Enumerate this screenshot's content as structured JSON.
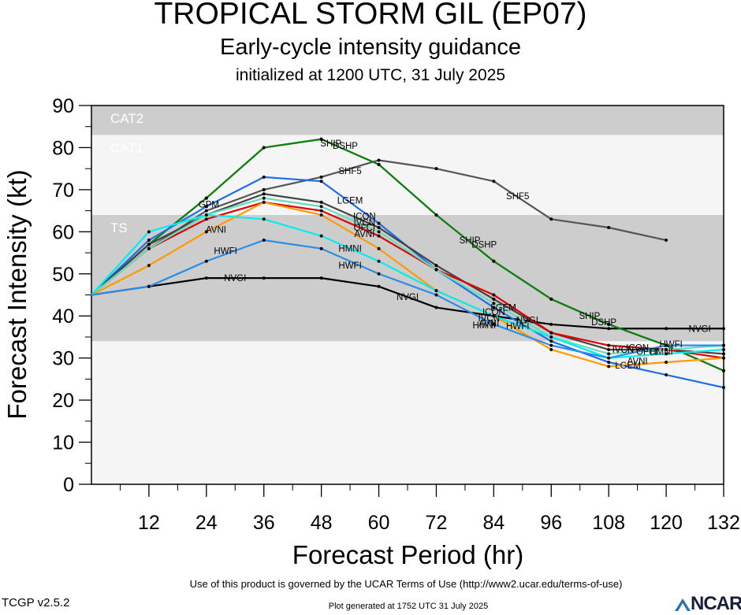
{
  "header": {
    "title": "TROPICAL STORM GIL (EP07)",
    "subtitle": "Early-cycle intensity guidance",
    "initialized": "initialized at 1200 UTC, 31 July 2025"
  },
  "footer": {
    "terms": "Use of this product is governed by the UCAR Terms of Use (http://www2.ucar.edu/terms-of-use)",
    "version": "TCGP v2.5.2",
    "generated": "Plot generated at 1752 UTC   31 July 2025",
    "logo_text": "NCAR"
  },
  "chart_data": {
    "type": "line",
    "xlabel": "Forecast Period (hr)",
    "ylabel": "Forecast Intensity (kt)",
    "xlim": [
      0,
      132
    ],
    "ylim": [
      0,
      90
    ],
    "x_ticks": [
      12,
      24,
      36,
      48,
      60,
      72,
      84,
      96,
      108,
      120,
      132
    ],
    "y_ticks": [
      0,
      10,
      20,
      30,
      40,
      50,
      60,
      70,
      80,
      90
    ],
    "bands": [
      {
        "label": "",
        "from": 0,
        "to": 34,
        "color": "#f5f5f5"
      },
      {
        "label": "TS",
        "from": 34,
        "to": 64,
        "color": "#cdcdcd"
      },
      {
        "label": "CAT1",
        "from": 64,
        "to": 83,
        "color": "#f5f5f5"
      },
      {
        "label": "CAT2",
        "from": 83,
        "to": 90,
        "color": "#cdcdcd"
      }
    ],
    "series": [
      {
        "name": "NVGI",
        "color": "#000000",
        "x": [
          0,
          12,
          24,
          36,
          48,
          60,
          72,
          84,
          96,
          108,
          120,
          132
        ],
        "values": [
          45,
          47,
          49,
          49,
          49,
          47,
          42,
          40,
          38,
          37,
          37,
          37
        ]
      },
      {
        "name": "SHF5",
        "color": "#555555",
        "x": [
          0,
          12,
          24,
          36,
          48,
          60,
          72,
          84,
          96,
          108,
          120
        ],
        "values": [
          45,
          56,
          65,
          70,
          73,
          77,
          75,
          72,
          63,
          61,
          58
        ]
      },
      {
        "name": "SHIP",
        "color": "#ff00ff",
        "x": [
          0,
          12,
          24,
          36,
          48,
          60,
          72,
          84,
          96,
          108,
          120,
          132
        ],
        "values": [
          45,
          57,
          68,
          80,
          82,
          76,
          64,
          53,
          44,
          38,
          33,
          27
        ]
      },
      {
        "name": "DSHP",
        "color": "#008800",
        "x": [
          0,
          12,
          24,
          36,
          48,
          60,
          72,
          84,
          96,
          108,
          120,
          132
        ],
        "values": [
          45,
          57,
          68,
          80,
          82,
          76,
          64,
          53,
          44,
          38,
          33,
          27
        ]
      },
      {
        "name": "LGEM",
        "color": "#1e6ee6",
        "x": [
          0,
          12,
          24,
          36,
          48,
          60,
          72,
          84,
          96,
          108,
          120,
          132
        ],
        "values": [
          45,
          58,
          66,
          73,
          72,
          62,
          51,
          42,
          34,
          29,
          26,
          23
        ]
      },
      {
        "name": "GPM",
        "color": "#1e6ee6",
        "x": [
          24
        ],
        "values": [
          66
        ]
      },
      {
        "name": "ICON",
        "color": "#444444",
        "x": [
          0,
          12,
          24,
          36,
          48,
          60,
          72,
          84,
          96,
          108,
          120,
          132
        ],
        "values": [
          45,
          57,
          64,
          69,
          67,
          61,
          52,
          44,
          36,
          32,
          32,
          31
        ]
      },
      {
        "name": "IVCN",
        "color": "#e00000",
        "x": [
          0,
          12,
          24,
          36,
          48,
          60,
          72,
          84,
          96,
          108,
          120,
          132
        ],
        "values": [
          45,
          56,
          63,
          67,
          65,
          59,
          51,
          45,
          36,
          33,
          32,
          30
        ]
      },
      {
        "name": "OFCI",
        "color": "#66ddbb",
        "x": [
          0,
          12,
          24,
          36,
          48,
          60,
          72,
          84,
          96,
          108,
          120,
          132
        ],
        "values": [
          45,
          56,
          64,
          68,
          66,
          60,
          51,
          43,
          35,
          31,
          32,
          33
        ]
      },
      {
        "name": "AVNI",
        "color": "#ff9900",
        "x": [
          0,
          12,
          24,
          36,
          48,
          60,
          72,
          84,
          96,
          108,
          120,
          132
        ],
        "values": [
          45,
          52,
          60,
          67,
          64,
          56,
          46,
          40,
          32,
          28,
          29,
          30
        ]
      },
      {
        "name": "HMNI",
        "color": "#00eeee",
        "x": [
          0,
          12,
          24,
          36,
          48,
          60,
          72,
          84,
          96,
          108,
          120,
          132
        ],
        "values": [
          45,
          60,
          64,
          63,
          59,
          53,
          46,
          40,
          35,
          30,
          31,
          32
        ]
      },
      {
        "name": "HWFI",
        "color": "#2a8de8",
        "x": [
          0,
          12,
          24,
          36,
          48,
          60,
          72,
          84,
          96,
          108,
          120,
          132
        ],
        "values": [
          45,
          47,
          53,
          58,
          56,
          50,
          45,
          38,
          33,
          30,
          33,
          33
        ]
      }
    ],
    "line_labels": [
      {
        "text": "NVGI",
        "x": 30,
        "y": 49
      },
      {
        "text": "NVGI",
        "x": 66,
        "y": 44.5
      },
      {
        "text": "NVGI",
        "x": 91,
        "y": 39
      },
      {
        "text": "NVGI",
        "x": 127,
        "y": 37
      },
      {
        "text": "HWFI",
        "x": 28,
        "y": 55.5
      },
      {
        "text": "HMNI",
        "x": 54,
        "y": 56
      },
      {
        "text": "HWFI",
        "x": 54,
        "y": 52
      },
      {
        "text": "HWFI",
        "x": 121,
        "y": 33.3
      },
      {
        "text": "HMNI",
        "x": 119,
        "y": 31.5
      },
      {
        "text": "AVNI",
        "x": 26,
        "y": 60.5
      },
      {
        "text": "AVNI",
        "x": 57,
        "y": 59.5
      },
      {
        "text": "AVNI",
        "x": 114,
        "y": 29.3
      },
      {
        "text": "LGEM",
        "x": 54,
        "y": 67.5
      },
      {
        "text": "LGEM",
        "x": 112,
        "y": 28.3
      },
      {
        "text": "ICON",
        "x": 57,
        "y": 63.7
      },
      {
        "text": "IVCN",
        "x": 57,
        "y": 62.2
      },
      {
        "text": "OFCI",
        "x": 57,
        "y": 61
      },
      {
        "text": "GPM",
        "x": 24.5,
        "y": 66.5
      },
      {
        "text": "SHF5",
        "x": 54,
        "y": 74.5
      },
      {
        "text": "SHF5",
        "x": 89,
        "y": 68.5
      },
      {
        "text": "SHIP",
        "x": 50,
        "y": 81
      },
      {
        "text": "DSHP",
        "x": 53,
        "y": 80.5
      },
      {
        "text": "SHIP",
        "x": 79,
        "y": 58
      },
      {
        "text": "DSHP",
        "x": 82,
        "y": 57
      },
      {
        "text": "SHIP",
        "x": 104,
        "y": 40
      },
      {
        "text": "DSHP",
        "x": 107,
        "y": 38.5
      },
      {
        "text": "LGEM",
        "x": 86,
        "y": 42
      },
      {
        "text": "ICON",
        "x": 84,
        "y": 41
      },
      {
        "text": "IVCN",
        "x": 83,
        "y": 39.5
      },
      {
        "text": "AVNI",
        "x": 83,
        "y": 38.3
      },
      {
        "text": "HMNI",
        "x": 82,
        "y": 37.8
      },
      {
        "text": "HWFI",
        "x": 89,
        "y": 37.6
      },
      {
        "text": "IVCN",
        "x": 111,
        "y": 32
      },
      {
        "text": "ICON",
        "x": 114,
        "y": 32.5
      },
      {
        "text": "OFCI",
        "x": 116,
        "y": 31.5
      }
    ]
  }
}
